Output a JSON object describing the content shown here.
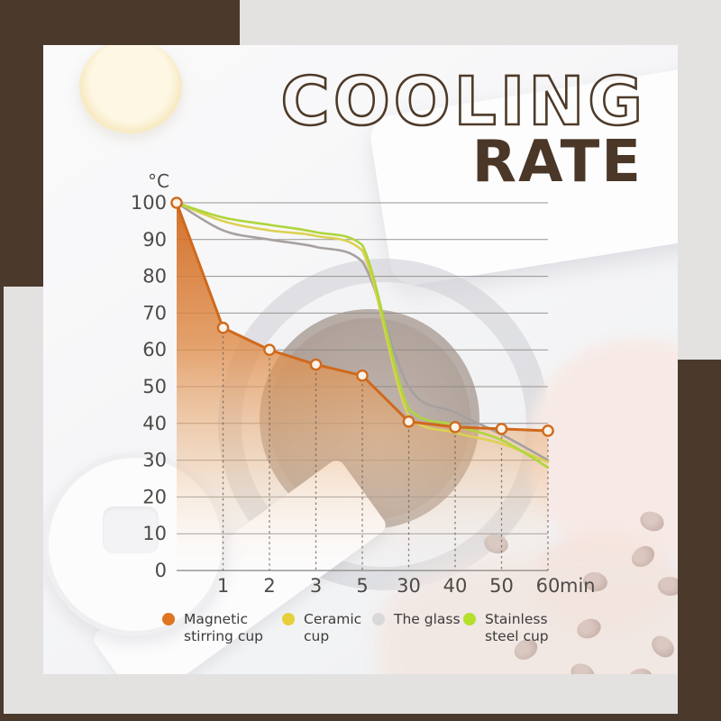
{
  "title": {
    "line1": "COOLING",
    "line2": "RATE"
  },
  "colors": {
    "frame_brown": "#4b3a2c",
    "title_brown": "#4e3a28",
    "canvas_gray": "#e3e2e1",
    "axis_text": "#4d4a47",
    "gridline": "#8d8a87",
    "dropline": "#6a6258"
  },
  "chart_data": {
    "type": "line",
    "title": "COOLING RATE",
    "y_unit_label": "°C",
    "x_unit_label": "min",
    "x_tick_labels": [
      "1",
      "2",
      "3",
      "5",
      "30",
      "40",
      "50",
      "60"
    ],
    "categories_min": [
      0,
      1,
      2,
      3,
      5,
      30,
      40,
      50,
      60
    ],
    "y_ticks": [
      0,
      10,
      20,
      30,
      40,
      50,
      60,
      70,
      80,
      90,
      100
    ],
    "ylim": [
      0,
      100
    ],
    "grid": "horizontal solid lines; dashed vertical droplines under first series points",
    "legend_position": "bottom",
    "series": [
      {
        "name": "Magnetic stirring cup",
        "color": "#d0691c",
        "values": [
          100,
          66,
          60,
          56,
          53,
          40.5,
          39,
          38.5,
          38
        ],
        "style": "straight segments, white dots at points, orange gradient area fill"
      },
      {
        "name": "Ceramic cup",
        "color": "#dcd152",
        "values": [
          100,
          95,
          92.5,
          91,
          87,
          42,
          37.5,
          34.5,
          29.5
        ],
        "style": "smooth curve"
      },
      {
        "name": "The glass",
        "color": "#a6a19e",
        "values": [
          100,
          92.5,
          90,
          88,
          84,
          50,
          43,
          37,
          30
        ],
        "style": "smooth curve"
      },
      {
        "name": "Stainless steel cup",
        "color": "#aed63c",
        "values": [
          100,
          96,
          94,
          92,
          88.5,
          44,
          39.5,
          35.5,
          28
        ],
        "style": "smooth curve"
      }
    ],
    "legend": [
      {
        "line1": "Magnetic",
        "line2": "stirring cup",
        "color": "#e0751f"
      },
      {
        "line1": "Ceramic",
        "line2": "cup",
        "color": "#e6cf3a"
      },
      {
        "line1": "The glass",
        "line2": "",
        "color": "#d9d9d9"
      },
      {
        "line1": "Stainless",
        "line2": "steel cup",
        "color": "#b4e02c"
      }
    ]
  }
}
